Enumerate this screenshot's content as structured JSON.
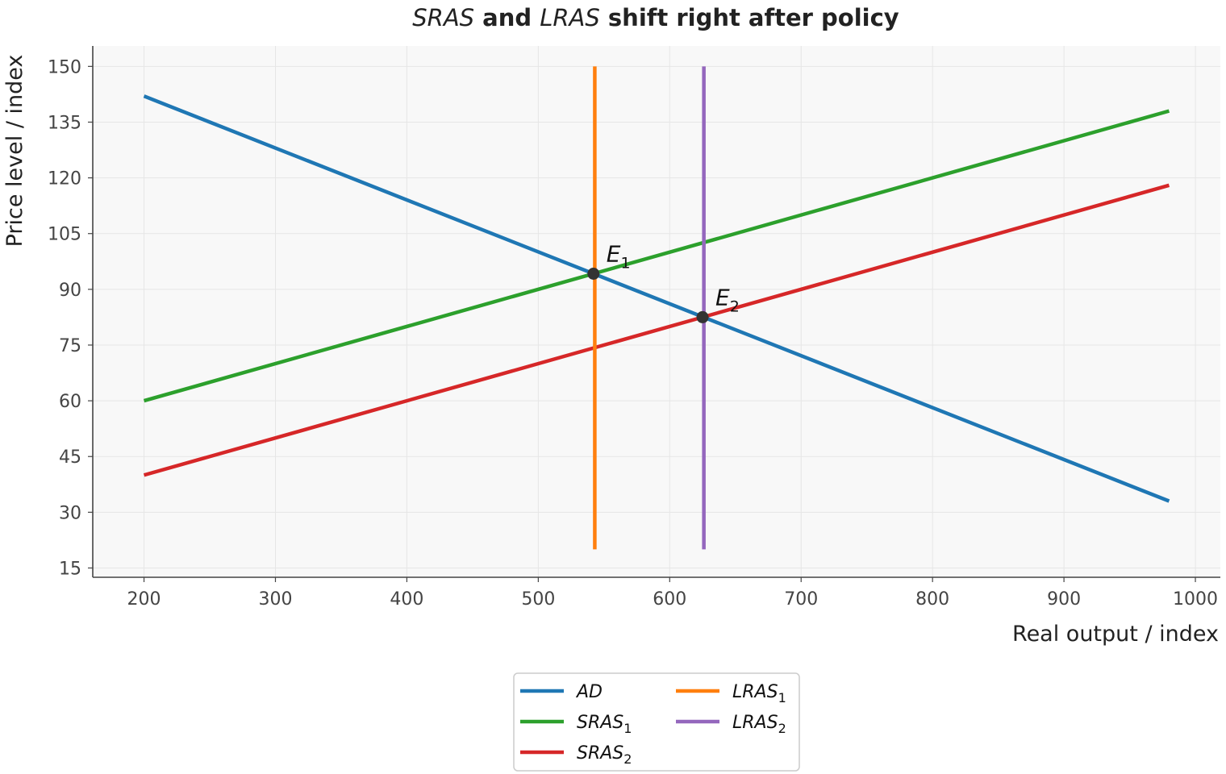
{
  "chart_data": {
    "type": "line",
    "title": {
      "parts": [
        {
          "text": "SRAS",
          "italic": true,
          "bold": false
        },
        {
          "text": " and ",
          "italic": false,
          "bold": true
        },
        {
          "text": "LRAS",
          "italic": true,
          "bold": false
        },
        {
          "text": " shift right after policy",
          "italic": false,
          "bold": true
        }
      ]
    },
    "xlabel": "Real output / index",
    "ylabel": "Price level / index",
    "xlim": [
      161,
      1019
    ],
    "ylim": [
      12.5,
      155.5
    ],
    "xticks": [
      200,
      300,
      400,
      500,
      600,
      700,
      800,
      900,
      1000
    ],
    "yticks": [
      15,
      30,
      45,
      60,
      75,
      90,
      105,
      120,
      135,
      150
    ],
    "grid": true,
    "legend_position": "bottom-center, below axes",
    "colors": {
      "AD": "#1f77b4",
      "SRAS1": "#2ca02c",
      "SRAS2": "#d62728",
      "LRAS1": "#ff7f0e",
      "LRAS2": "#9467bd",
      "point": "#333333",
      "plot_bg": "#f8f8f8",
      "grid": "#e6e6e6",
      "axis": "#444444"
    },
    "series": [
      {
        "key": "AD",
        "name_base": "AD",
        "name_sub": "",
        "color_key": "AD",
        "x": [
          200,
          980
        ],
        "y": [
          142,
          33
        ]
      },
      {
        "key": "SRAS1",
        "name_base": "SRAS",
        "name_sub": "1",
        "color_key": "SRAS1",
        "x": [
          200,
          980
        ],
        "y": [
          60,
          138
        ]
      },
      {
        "key": "SRAS2",
        "name_base": "SRAS",
        "name_sub": "2",
        "color_key": "SRAS2",
        "x": [
          200,
          980
        ],
        "y": [
          40,
          118
        ]
      },
      {
        "key": "LRAS1",
        "name_base": "LRAS",
        "name_sub": "1",
        "color_key": "LRAS1",
        "x": [
          543,
          543
        ],
        "y": [
          20,
          150
        ]
      },
      {
        "key": "LRAS2",
        "name_base": "LRAS",
        "name_sub": "2",
        "color_key": "LRAS2",
        "x": [
          626,
          626
        ],
        "y": [
          20,
          150
        ]
      }
    ],
    "legend_order": [
      "AD",
      "SRAS1",
      "SRAS2",
      "LRAS1",
      "LRAS2"
    ],
    "equilibria": [
      {
        "key": "E1",
        "base": "E",
        "sub": "1",
        "x": 542,
        "y": 94.2
      },
      {
        "key": "E2",
        "base": "E",
        "sub": "2",
        "x": 625,
        "y": 82.5
      }
    ]
  }
}
